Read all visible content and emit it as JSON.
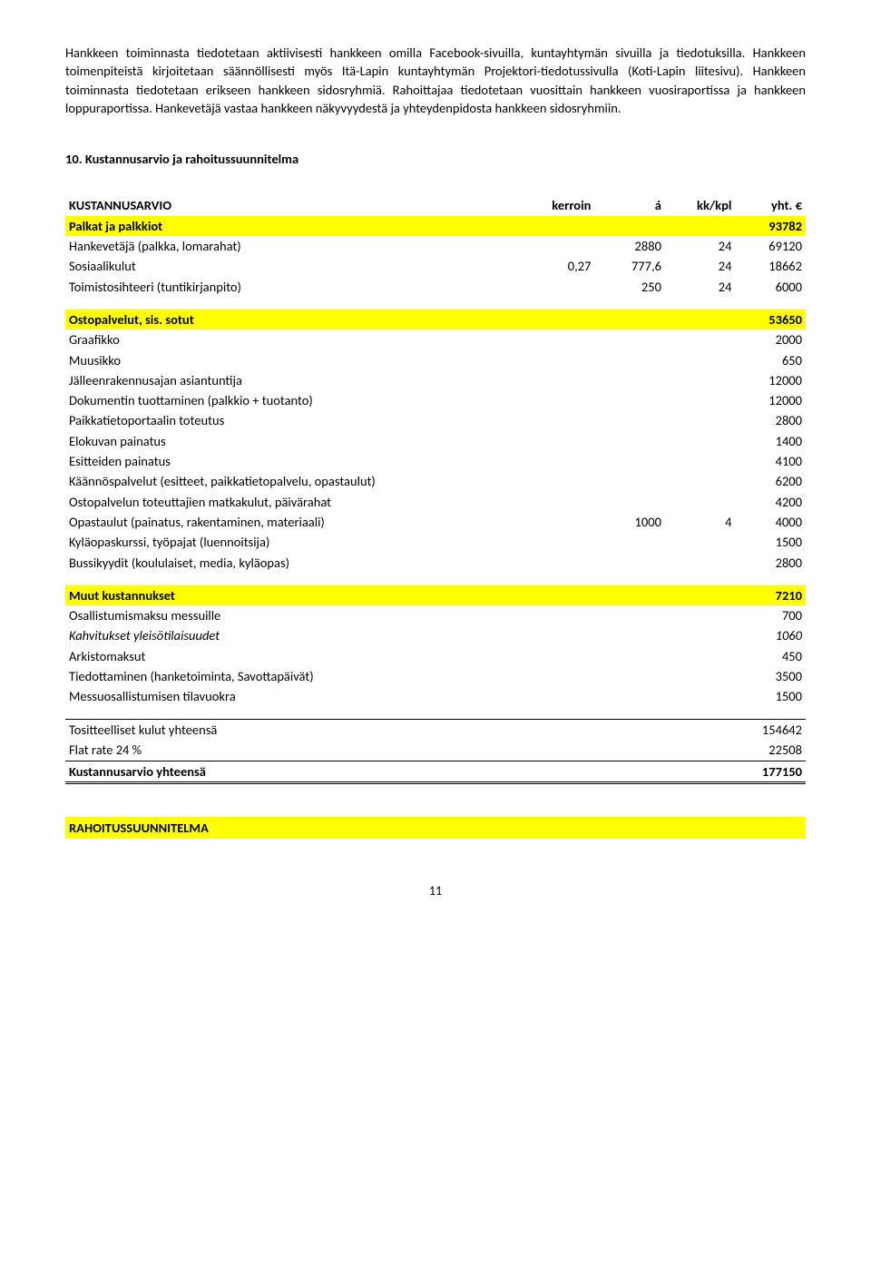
{
  "para1": "Hankkeen toiminnasta tiedotetaan aktiivisesti hankkeen omilla Facebook-sivuilla, kuntayhtymän sivuilla ja tiedotuksilla. Hankkeen toimenpiteistä kirjoitetaan säännöllisesti myös Itä-Lapin kuntayhtymän Projektori-tiedotussivulla (Koti-Lapin liitesivu). Hankkeen toiminnasta tiedotetaan erikseen hankkeen sidosryhmiä. Rahoittajaa tiedotetaan vuosittain hankkeen vuosiraportissa ja hankkeen loppuraportissa. Hankevetäjä vastaa hankkeen näkyvyydestä ja yhteydenpidosta hankkeen sidosryhmiin.",
  "heading10": "10. Kustannusarvio ja rahoitussuunnitelma",
  "cols": {
    "c0": "KUSTANNUSARVIO",
    "c1": "kerroin",
    "c2": "á",
    "c3": "kk/kpl",
    "c4": "yht. €"
  },
  "palkat": {
    "header": "Palkat ja palkkiot",
    "total": "93782",
    "rows": [
      {
        "label": "Hankevetäjä (palkka, lomarahat)",
        "v1": "",
        "v2": "2880",
        "v3": "24",
        "v4": "69120"
      },
      {
        "label": "Sosiaalikulut",
        "v1": "0,27",
        "v2": "777,6",
        "v3": "24",
        "v4": "18662"
      },
      {
        "label": "Toimistosihteeri (tuntikirjanpito)",
        "v1": "",
        "v2": "250",
        "v3": "24",
        "v4": "6000"
      }
    ]
  },
  "osto": {
    "header": "Ostopalvelut, sis. sotut",
    "total": "53650",
    "rows": [
      {
        "label": "Graafikko",
        "v4": "2000"
      },
      {
        "label": "Muusikko",
        "v4": "650"
      },
      {
        "label": "Jälleenrakennusajan asiantuntija",
        "v4": "12000"
      },
      {
        "label": "Dokumentin tuottaminen (palkkio + tuotanto)",
        "v4": "12000"
      },
      {
        "label": "Paikkatietoportaalin toteutus",
        "v4": "2800"
      },
      {
        "label": "Elokuvan painatus",
        "v4": "1400"
      },
      {
        "label": "Esitteiden painatus",
        "v4": "4100"
      },
      {
        "label": "Käännöspalvelut (esitteet, paikkatietopalvelu, opastaulut)",
        "v4": "6200"
      },
      {
        "label": "Ostopalvelun toteuttajien matkakulut, päivärahat",
        "v4": "4200"
      },
      {
        "label": "Opastaulut (painatus, rakentaminen, materiaali)",
        "v2": "1000",
        "v3": "4",
        "v4": "4000"
      },
      {
        "label": "Kyläopaskurssi, työpajat (luennoitsija)",
        "v4": "1500"
      },
      {
        "label": "Bussikyydit (koululaiset, media, kyläopas)",
        "v4": "2800"
      }
    ]
  },
  "muut": {
    "header": "Muut kustannukset",
    "total": "7210",
    "rows": [
      {
        "label": "Osallistumismaksu messuille",
        "v4": "700"
      },
      {
        "label": "Kahvitukset yleisötilaisuudet",
        "v4": "1060",
        "italic": true
      },
      {
        "label": "Arkistomaksut",
        "v4": "450"
      },
      {
        "label": "Tiedottaminen (hanketoiminta, Savottapäivät)",
        "v4": "3500"
      },
      {
        "label": "Messuosallistumisen tilavuokra",
        "v4": "1500"
      }
    ]
  },
  "totals": {
    "tositteelliset": {
      "label": "Tositteelliset kulut yhteensä",
      "val": "154642"
    },
    "flat": {
      "label": "Flat rate 24 %",
      "val": "22508"
    },
    "kust": {
      "label": "Kustannusarvio yhteensä",
      "val": "177150"
    }
  },
  "rahoitus": "RAHOITUSSUUNNITELMA",
  "page": "11"
}
